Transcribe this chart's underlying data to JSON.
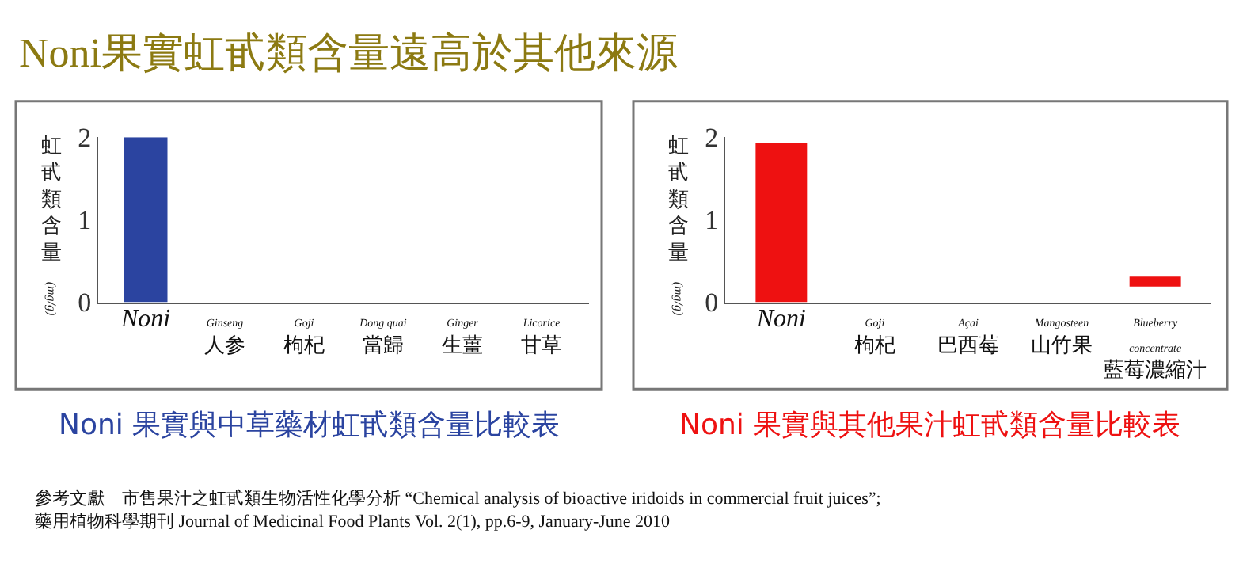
{
  "chart_data": [
    {
      "type": "bar",
      "title": "Noni 果實與中草藥材虹甙類含量比較表",
      "ylabel": "虹甙類含量 (mg/g)",
      "categories": [
        "Noni",
        "Ginseng\n人参",
        "Goji\n枸杞",
        "Dong quai\n當歸",
        "Ginger\n生薑",
        "Licorice\n甘草"
      ],
      "values": [
        2.0,
        null,
        null,
        null,
        null,
        null
      ],
      "color": "#2b44a0",
      "ylim": [
        0,
        2
      ],
      "yticks": [
        0,
        1,
        2
      ],
      "annotations": [
        "Noni果實虹甙類含量遠高於其他來源"
      ]
    },
    {
      "type": "bar",
      "title": "Noni 果實與其他果汁虹甙類含量比較表",
      "ylabel": "虹甙類含量 (mg/g)",
      "categories": [
        "Noni",
        "Goji\n枸杞",
        "Açai\n巴西莓",
        "Mangosteen\n山竹果",
        "Blueberry\nconcentrate\n藍莓濃縮汁"
      ],
      "values": [
        1.93,
        null,
        null,
        null,
        0.12
      ],
      "base": [
        0,
        null,
        null,
        null,
        0.19
      ],
      "color": "#ee1111",
      "ylim": [
        0,
        2
      ],
      "yticks": [
        0,
        1,
        2
      ],
      "annotations": [
        "參考文獻　市售果汁之虹甙類生物活性化學分析 “Chemical analysis of bioactive iridoids in commercial fruit juices”;\n藥用植物科學期刊 Journal of Medicinal Food Plants Vol. 2(1), pp.6-9, January-June 2010"
      ]
    }
  ]
}
